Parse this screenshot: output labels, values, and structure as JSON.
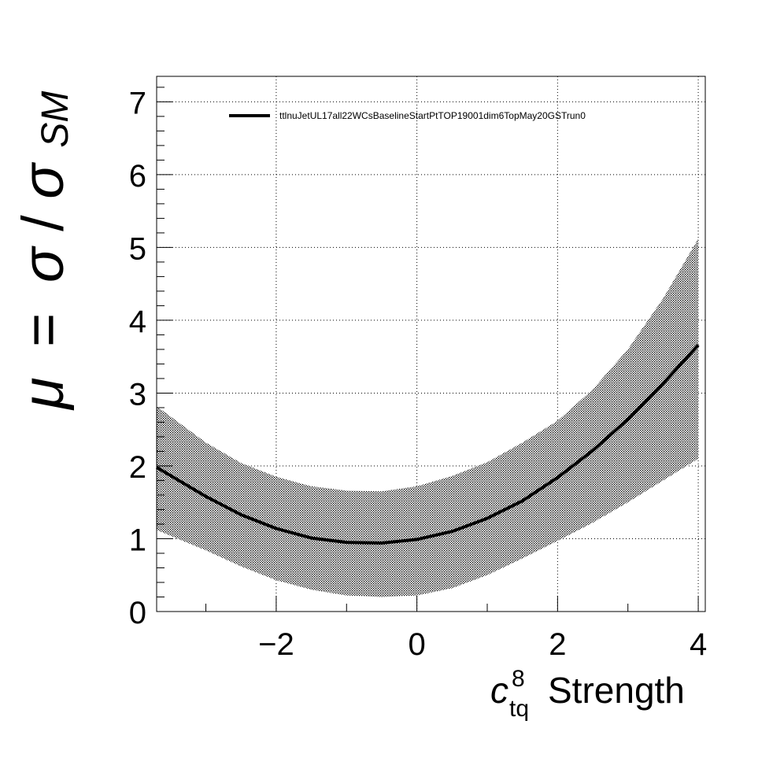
{
  "chart_data": {
    "type": "line",
    "title": "",
    "xlabel": {
      "symbol": "c",
      "superscript": "8",
      "subscript": "tq",
      "text": "Strength"
    },
    "ylabel": {
      "mu": "μ",
      "equals": "=",
      "sigma": "σ",
      "slash": "/",
      "subscript": "SM"
    },
    "xlim": [
      -3.7,
      4.1
    ],
    "ylim": [
      0,
      7.35
    ],
    "xticks": [
      -2,
      0,
      2,
      4
    ],
    "xtick_labels": [
      "−2",
      "0",
      "2",
      "4"
    ],
    "yticks": [
      0,
      1,
      2,
      3,
      4,
      5,
      6,
      7
    ],
    "ytick_labels": [
      "0",
      "1",
      "2",
      "3",
      "4",
      "5",
      "6",
      "7"
    ],
    "grid": true,
    "legend": {
      "placement": "top-left",
      "entries": [
        "ttlnuJetUL17all22WCsBaselineStartPtTOP19001dim6TopMay20GSTrun0"
      ]
    },
    "series": [
      {
        "name": "ttlnuJetUL17all22WCsBaselineStartPtTOP19001dim6TopMay20GSTrun0",
        "x": [
          -3.7,
          -3.0,
          -2.5,
          -2.0,
          -1.5,
          -1.0,
          -0.5,
          0.0,
          0.5,
          1.0,
          1.5,
          2.0,
          2.5,
          3.0,
          3.5,
          4.0
        ],
        "y": [
          1.98,
          1.58,
          1.33,
          1.14,
          1.01,
          0.95,
          0.94,
          0.99,
          1.1,
          1.28,
          1.52,
          1.84,
          2.21,
          2.64,
          3.13,
          3.66
        ],
        "lower": [
          1.12,
          0.84,
          0.62,
          0.43,
          0.3,
          0.22,
          0.2,
          0.22,
          0.32,
          0.5,
          0.73,
          0.97,
          1.22,
          1.5,
          1.8,
          2.1
        ],
        "upper": [
          2.82,
          2.32,
          2.04,
          1.85,
          1.72,
          1.66,
          1.65,
          1.72,
          1.86,
          2.05,
          2.32,
          2.62,
          3.05,
          3.6,
          4.3,
          5.12
        ]
      }
    ]
  }
}
